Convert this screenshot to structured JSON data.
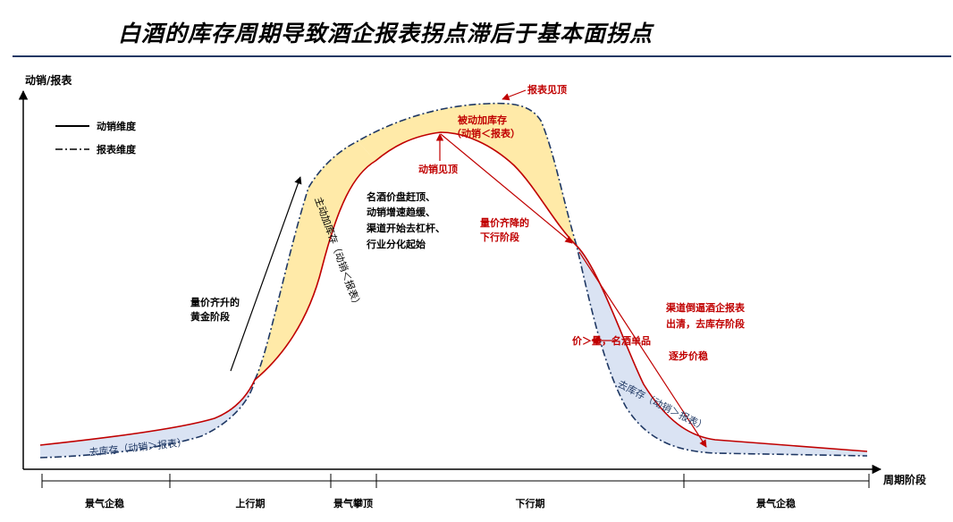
{
  "title": "白酒的库存周期导致酒企报表拐点滞后于基本面拐点",
  "y_axis_label": "动销/报表",
  "x_axis_label": "周期阶段",
  "legend": {
    "sales": "动销维度",
    "report": "报表维度"
  },
  "annotations": {
    "report_peak": "报表见顶",
    "passive_build_1": "被动加库存",
    "passive_build_2": "（动销＜报表）",
    "sales_peak": "动销见顶",
    "active_build_vertical": "主动加库存（动销＜报表）",
    "liquor_1": "名酒价盘赶顶、",
    "liquor_2": "动销增速趋缓、",
    "liquor_3": "渠道开始去杠杆、",
    "liquor_4": "行业分化起始",
    "golden_1": "量价齐升的",
    "golden_2": "黄金阶段",
    "fall_1": "量价齐降的",
    "fall_2": "下行阶段",
    "clear_1": "渠道倒逼酒企报表",
    "clear_2": "出清，去库存阶段",
    "price_volume": "价＞量，名酒单品",
    "stabilize": "逐步价稳",
    "destock_right": "去库存（动销＞报表）",
    "destock_left": "去库存（动销＞报表）"
  },
  "phases": [
    "景气企稳",
    "上行期",
    "景气攀顶",
    "下行期",
    "景气企稳"
  ],
  "colors": {
    "sales_line": "#c00000",
    "report_line": "#1f3864",
    "build_fill": "#ffe699",
    "destock_fill": "#dae3f3",
    "annotation_red": "#c00000",
    "title_rule": "#1f3864"
  }
}
